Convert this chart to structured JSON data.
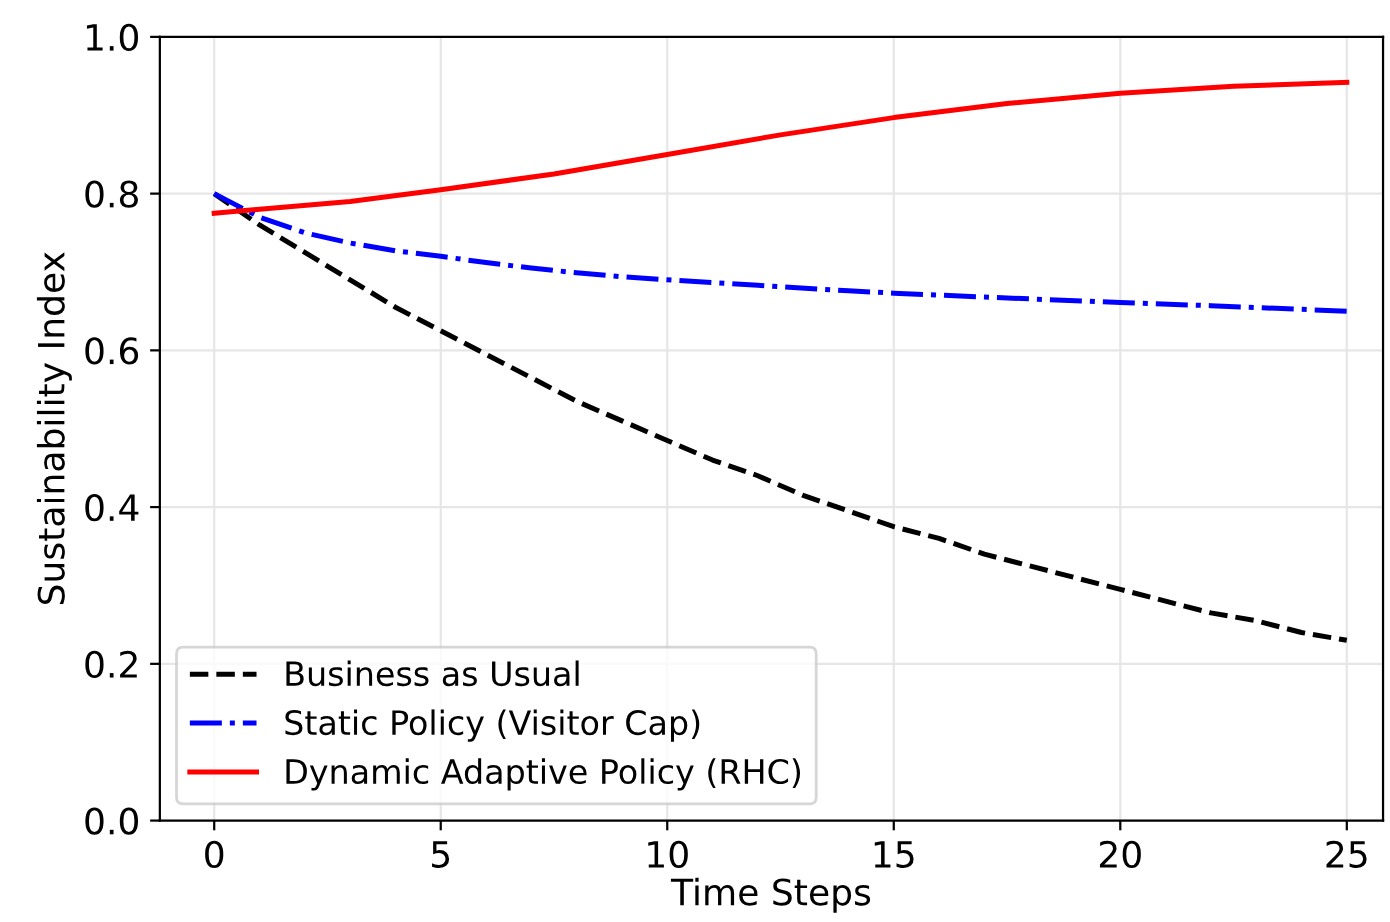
{
  "chart_data": {
    "type": "line",
    "xlabel": "Time Steps",
    "ylabel": "Sustainability Index",
    "xlim": [
      -1.2,
      25.8
    ],
    "ylim": [
      0,
      1
    ],
    "xticks": [
      0,
      5,
      10,
      15,
      20,
      25
    ],
    "yticks": [
      {
        "value": 0,
        "label": "0.0"
      },
      0.2,
      0.4,
      0.6,
      0.8,
      {
        "value": 1,
        "label": "1.0"
      }
    ],
    "grid": true,
    "legend": "bottom left",
    "series": [
      {
        "name": "Business as Usual",
        "color": "#000000",
        "line_style": "dashed",
        "x": [
          0,
          1,
          2,
          3,
          4,
          5,
          6,
          7,
          8,
          9,
          10,
          11,
          12,
          13,
          14,
          15,
          16,
          17,
          18,
          19,
          20,
          21,
          22,
          23,
          24,
          25
        ],
        "values": [
          0.8,
          0.76,
          0.725,
          0.69,
          0.655,
          0.625,
          0.595,
          0.565,
          0.535,
          0.51,
          0.485,
          0.46,
          0.44,
          0.415,
          0.395,
          0.375,
          0.36,
          0.34,
          0.325,
          0.31,
          0.295,
          0.28,
          0.265,
          0.255,
          0.24,
          0.23
        ]
      },
      {
        "name": "Static Policy (Visitor Cap)",
        "color": "#0000ff",
        "line_style": "dashdot",
        "x": [
          0,
          1,
          2,
          3,
          4,
          5,
          6,
          7,
          8,
          9,
          10,
          12,
          14,
          15,
          17,
          20,
          22,
          25
        ],
        "values": [
          0.8,
          0.77,
          0.75,
          0.737,
          0.727,
          0.72,
          0.712,
          0.705,
          0.699,
          0.694,
          0.69,
          0.683,
          0.676,
          0.673,
          0.668,
          0.661,
          0.657,
          0.65
        ]
      },
      {
        "name": "Dynamic Adaptive Policy (RHC)",
        "color": "#ff0000",
        "line_style": "solid",
        "x": [
          0,
          1,
          3,
          5,
          7.5,
          10,
          12.5,
          15,
          17.5,
          20,
          22.5,
          25
        ],
        "values": [
          0.775,
          0.78,
          0.79,
          0.805,
          0.825,
          0.85,
          0.875,
          0.897,
          0.915,
          0.928,
          0.937,
          0.942
        ]
      }
    ]
  }
}
